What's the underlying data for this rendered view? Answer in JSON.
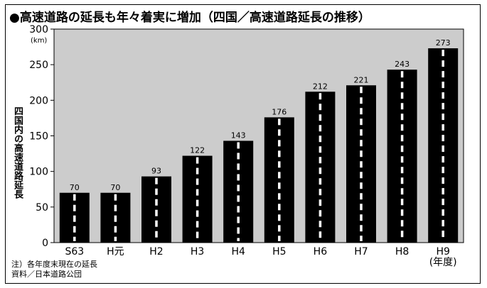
{
  "chart_data": {
    "type": "bar",
    "title": "●高速道路の延長も年々着実に増加（四国／高速道路延長の推移）",
    "ylabel": "四国内の高速道路延長",
    "unit": "(km)",
    "xunit": "(年度)",
    "categories": [
      "S63",
      "H元",
      "H2",
      "H3",
      "H4",
      "H5",
      "H6",
      "H7",
      "H8",
      "H9"
    ],
    "values": [
      70,
      70,
      93,
      122,
      143,
      176,
      212,
      221,
      243,
      273
    ],
    "ylim": [
      0,
      300
    ],
    "yticks": [
      0,
      50,
      100,
      150,
      200,
      250,
      300
    ],
    "grid": false,
    "colors": {
      "plot_bg": "#cccccc",
      "bar": "#000000",
      "lane_mark": "#ffffff"
    }
  },
  "notes": [
    "注）各年度末現在の延長",
    "資料／日本道路公団"
  ]
}
